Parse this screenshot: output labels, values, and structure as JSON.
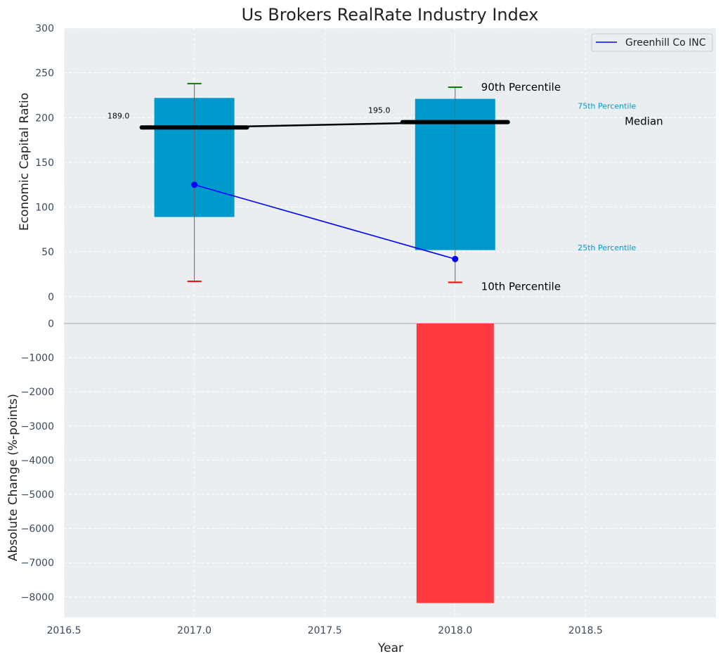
{
  "chart_data": [
    {
      "type": "box",
      "title": "Us Brokers RealRate Industry Index",
      "ylabel": "Economic Capital Ratio",
      "ylim": [
        -30,
        300
      ],
      "yticks": [
        0,
        50,
        100,
        150,
        200,
        250,
        300
      ],
      "grid": true,
      "legend_position": "top-right",
      "legend": [
        "Greenhill Co INC"
      ],
      "colors": {
        "box": "#0099cc",
        "median": "#000000",
        "company": "#0000ff",
        "p90_cap": "#008000",
        "p10_cap": "#ff0000",
        "background": "#eaeef0"
      },
      "x": [
        2017.0,
        2018.0
      ],
      "p10": [
        17,
        16
      ],
      "p25": [
        89,
        52
      ],
      "median": [
        189.0,
        195.0
      ],
      "p75": [
        222,
        221
      ],
      "p90": [
        238,
        234
      ],
      "median_labels": [
        "189.0",
        "195.0"
      ],
      "series": [
        {
          "name": "Greenhill Co INC",
          "x": [
            2017.0,
            2018.0
          ],
          "values": [
            125,
            42
          ]
        }
      ],
      "annotations": {
        "p90": "90th Percentile",
        "p75": "75th Percentile",
        "median": "Median",
        "p25": "25th Percentile",
        "p10": "10th Percentile"
      }
    },
    {
      "type": "bar",
      "xlabel": "Year",
      "ylabel": "Absolute Change (%-points)",
      "ylim": [
        -8600,
        0
      ],
      "yticks": [
        0,
        -1000,
        -2000,
        -3000,
        -4000,
        -5000,
        -6000,
        -7000,
        -8000
      ],
      "xlim": [
        2016.5,
        2019.0
      ],
      "xticks": [
        "2016.5",
        "2017.0",
        "2017.5",
        "2018.0",
        "2018.5"
      ],
      "x": [
        2018.0
      ],
      "values": [
        -8180
      ],
      "grid": true,
      "colors": {
        "bar": "#ff3b3f"
      }
    }
  ]
}
